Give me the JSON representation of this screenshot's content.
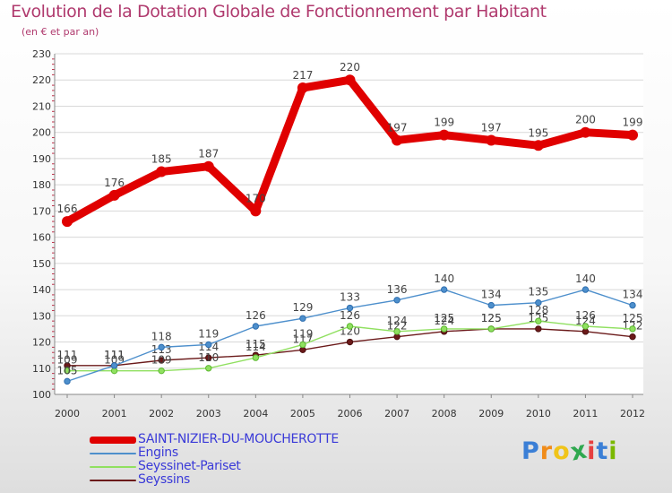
{
  "header": {
    "title": "Evolution de la Dotation Globale de Fonctionnement par Habitant",
    "subtitle": "(en € et par an)"
  },
  "brand": {
    "logo_text": "Proxiti",
    "logo_colors": [
      "#3b7fd6",
      "#f08c1a",
      "#f0c419",
      "#2fa84f",
      "#e64040",
      "#3b7fd6",
      "#7ab800"
    ]
  },
  "chart_data": {
    "type": "line",
    "title": "Evolution de la Dotation Globale de Fonctionnement par Habitant",
    "subtitle": "(en € et par an)",
    "xlabel": "",
    "ylabel": "",
    "categories": [
      "2000",
      "2001",
      "2002",
      "2003",
      "2004",
      "2005",
      "2006",
      "2007",
      "2008",
      "2009",
      "2010",
      "2011",
      "2012"
    ],
    "ylim": [
      100,
      230
    ],
    "yticks": [
      100,
      110,
      120,
      130,
      140,
      150,
      160,
      170,
      180,
      190,
      200,
      210,
      220,
      230
    ],
    "grid": "horizontal",
    "legend_position": "bottom-left",
    "series": [
      {
        "name": "SAINT-NIZIER-DU-MOUCHEROTTE",
        "color": "#e00000",
        "width": "thick",
        "values": [
          166,
          176,
          185,
          187,
          170,
          217,
          220,
          197,
          199,
          197,
          195,
          200,
          199
        ]
      },
      {
        "name": "Engins",
        "color": "#4d8fcc",
        "width": "thin",
        "values": [
          105,
          111,
          118,
          119,
          126,
          129,
          133,
          136,
          140,
          134,
          135,
          140,
          134
        ]
      },
      {
        "name": "Seyssinet-Pariset",
        "color": "#90e060",
        "width": "thin",
        "values": [
          109,
          109,
          109,
          110,
          114,
          119,
          126,
          124,
          125,
          125,
          128,
          126,
          125
        ]
      },
      {
        "name": "Seyssins",
        "color": "#6b1a1a",
        "width": "thin",
        "values": [
          111,
          111,
          113,
          114,
          115,
          117,
          120,
          122,
          124,
          125,
          125,
          124,
          122
        ]
      }
    ]
  }
}
